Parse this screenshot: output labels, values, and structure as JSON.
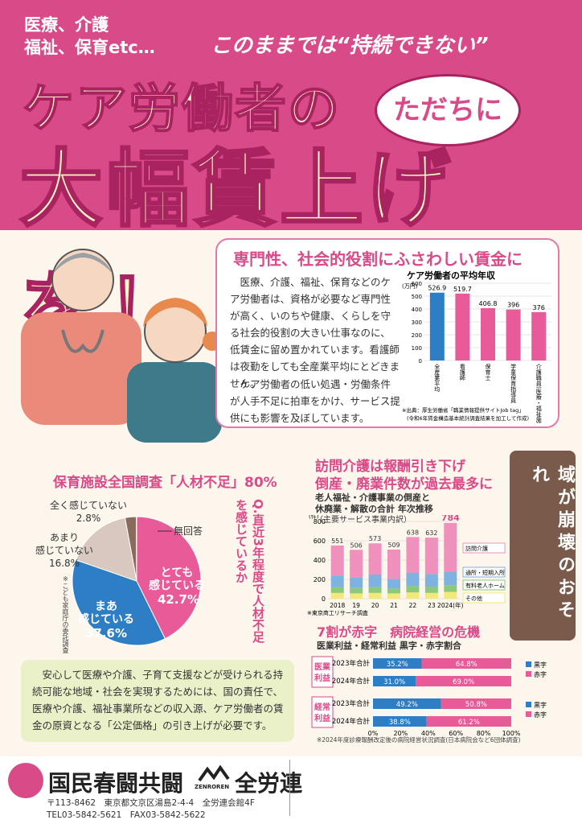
{
  "header": {
    "small_line1": "医療、介護",
    "small_line2": "福祉、保育etc…",
    "quote": "このままでは“持続できない”",
    "title_line1": "ケア労働者の",
    "bubble": "ただちに",
    "title_line2": "大幅賃上げを！"
  },
  "panel": {
    "title": "専門性、社会的役割にふさわしい賃金に",
    "paragraph1": "医療、介護、福祉、保育などのケア労働者は、資格が必要など専門性が高く、いのちや健康、くらしを守る社会的役割の大きい仕事なのに、低賃金に留め置かれています。看護師は夜勤をしても全産業平均にとどきません。",
    "paragraph2": "ケア労働者の低い処遇・労働条件が人手不足に拍車をかけ、サービス提供にも影響を及ぼしています。"
  },
  "chart_data": [
    {
      "type": "bar",
      "title": "ケア労働者の平均年収",
      "ylabel": "(万円)",
      "ylim": [
        0,
        600
      ],
      "yticks": [
        "600",
        "500",
        "400",
        "300",
        "200",
        "100",
        "0"
      ],
      "categories": [
        "全産業平均",
        "看護師",
        "保育士",
        "学童保育指導員",
        "介護職員(医療・福祉施設等)"
      ],
      "values": [
        526.9,
        519.7,
        406.8,
        396,
        376
      ],
      "value_labels": [
        "526.9",
        "519.7",
        "406.8",
        "396",
        "376"
      ],
      "colors": [
        "#2e7ec6",
        "#e95a98",
        "#e95a98",
        "#e95a98",
        "#e95a98"
      ],
      "source_line1": "※出典：厚生労働省「職業情報提供サイトJob tag」",
      "source_line2": "(令和6年賃金構造基本統計調査結果を加工して作成)"
    },
    {
      "type": "pie",
      "title": "保育施設全国調査「人材不足」80%",
      "question": "Q.直近3年程度で人材不足を感じているか",
      "source": "※こども家庭庁の委託調査",
      "slices": [
        {
          "label": "とても感じている",
          "value": 42.7,
          "value_label": "42.7%",
          "color": "#e95a98"
        },
        {
          "label": "まあ感じている",
          "value": 37.6,
          "value_label": "37.6%",
          "color": "#2e7ec6"
        },
        {
          "label": "あまり感じていない",
          "value": 16.8,
          "value_label": "16.8%",
          "color": "#d9c8c0"
        },
        {
          "label": "全く感じていない",
          "value": 2.8,
          "value_label": "2.8%",
          "color": "#8a6a5a"
        },
        {
          "label": "無回答",
          "value": 0.1,
          "value_label": "",
          "color": "#eeeeee"
        }
      ]
    },
    {
      "type": "bar",
      "title_main": "訪問介護は報酬引き下げ",
      "title_sub": "倒産・廃業件数が過去最多に",
      "chart_title1": "老人福祉・介護事業の倒産と",
      "chart_title2": "休廃業・解散の合計 年次推移",
      "chart_title3": "（主要サービス事業内訳）",
      "ylabel": "(件)",
      "ylim": [
        0,
        800
      ],
      "yticks": [
        "800",
        "600",
        "400",
        "200",
        "0"
      ],
      "categories": [
        "2018",
        "19",
        "20",
        "21",
        "22",
        "23",
        "2024(年)"
      ],
      "totals": [
        551,
        506,
        573,
        509,
        638,
        632,
        784
      ],
      "total_labels": [
        "551",
        "506",
        "573",
        "509",
        "638",
        "632",
        "784"
      ],
      "series": [
        {
          "name": "その他",
          "values": [
            60,
            55,
            60,
            55,
            65,
            60,
            70
          ],
          "color": "#f3e87a"
        },
        {
          "name": "有料老人ホーム",
          "values": [
            60,
            55,
            60,
            50,
            65,
            65,
            70
          ],
          "color": "#8cc97a"
        },
        {
          "name": "通所・短期入所",
          "values": [
            120,
            110,
            130,
            100,
            140,
            130,
            135
          ],
          "color": "#7eb2e0"
        },
        {
          "name": "訪問介護",
          "values": [
            311,
            286,
            323,
            304,
            368,
            377,
            509
          ],
          "color": "#f090bd"
        }
      ],
      "source": "※東京商工リサーチ調査"
    },
    {
      "type": "bar",
      "title_main": "7割が赤字　病院経営の危機",
      "subtitle": "医業利益・経常利益 黒字・赤字割合",
      "groups": [
        {
          "name": "医業利益",
          "rows": [
            {
              "label": "2023年合計",
              "black": 35.2,
              "red": 64.8,
              "black_label": "35.2%",
              "red_label": "64.8%"
            },
            {
              "label": "2024年合計",
              "black": 31.0,
              "red": 69.0,
              "black_label": "31.0%",
              "red_label": "69.0%"
            }
          ]
        },
        {
          "name": "経常利益",
          "rows": [
            {
              "label": "2023年合計",
              "black": 49.2,
              "red": 50.8,
              "black_label": "49.2%",
              "red_label": "50.8%"
            },
            {
              "label": "2024年合計",
              "black": 38.8,
              "red": 61.2,
              "black_label": "38.8%",
              "red_label": "61.2%"
            }
          ]
        }
      ],
      "legend": [
        "黒字",
        "赤字"
      ],
      "legend_colors": [
        "#2e7ec6",
        "#e95a98"
      ],
      "xticks": [
        "0%",
        "20%",
        "40%",
        "60%",
        "80%",
        "100%"
      ],
      "source": "※2024年度診療報酬改定後の病院経営状況調査(日本病院会など6団体調査)"
    }
  ],
  "side_note": "このままでは地域が崩壊のおそれ",
  "bottom_box": {
    "text": "安心して医療や介護、子育て支援などが受けられる持続可能な地域・社会を実現するためには、国の責任で、医療や介護、福祉事業所などの収入源、ケア労働者の賃金の原資となる「公定価格」の引き上げが必要です。"
  },
  "footer": {
    "org1": "国民春闘共闘",
    "zenroren_mark": "ZENROREN",
    "org2": "全労連",
    "address": "〒113-8462　東京都文京区湯島2-4-4　全労連会館4F",
    "tel_fax": "TEL03-5842-5621　FAX03-5842-5622"
  }
}
